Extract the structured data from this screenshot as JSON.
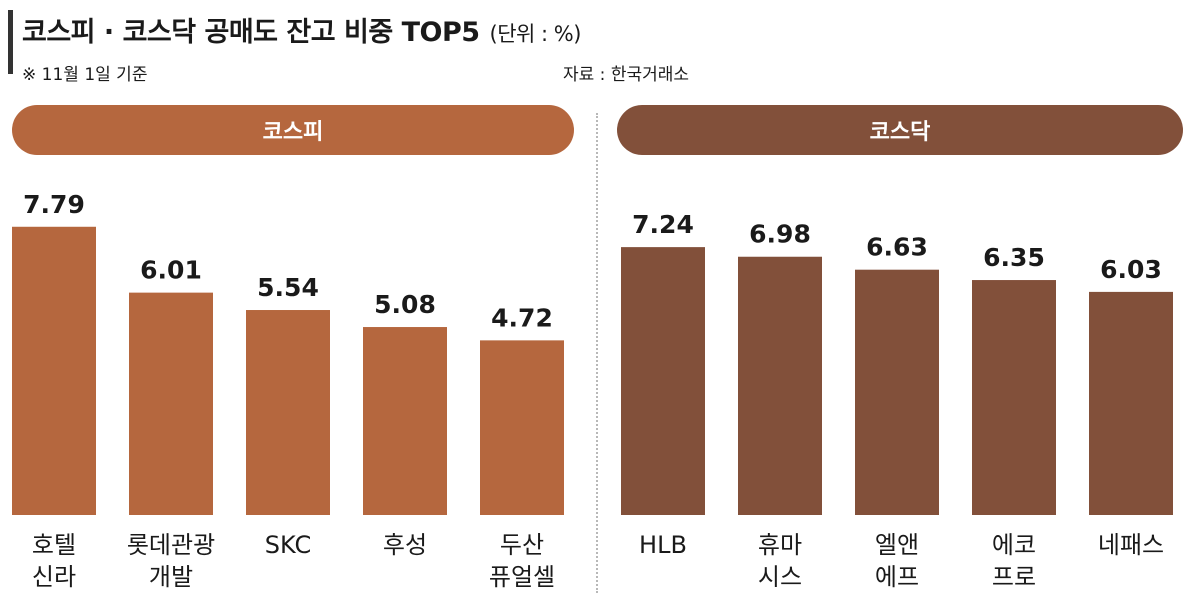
{
  "header": {
    "title": "코스피 · 코스닥 공매도 잔고 비중 TOP5",
    "unit": "(단위 : %)",
    "note": "※ 11월 1일 기준",
    "source": "자료 : 한국거래소"
  },
  "colors": {
    "kospi": "#B5673E",
    "kosdaq": "#82503A"
  },
  "chart_data": [
    {
      "type": "bar",
      "panel": "코스피",
      "categories": [
        [
          "호텔",
          "신라"
        ],
        [
          "롯데관광",
          "개발"
        ],
        [
          "SKC"
        ],
        [
          "후성"
        ],
        [
          "두산",
          "퓨얼셀"
        ]
      ],
      "values": [
        7.79,
        6.01,
        5.54,
        5.08,
        4.72
      ],
      "value_labels": [
        "7.79",
        "6.01",
        "5.54",
        "5.08",
        "4.72"
      ],
      "color": "#B5673E"
    },
    {
      "type": "bar",
      "panel": "코스닥",
      "categories": [
        [
          "HLB"
        ],
        [
          "휴마",
          "시스"
        ],
        [
          "엘앤",
          "에프"
        ],
        [
          "에코",
          "프로"
        ],
        [
          "네패스"
        ]
      ],
      "values": [
        7.24,
        6.98,
        6.63,
        6.35,
        6.03
      ],
      "value_labels": [
        "7.24",
        "6.98",
        "6.63",
        "6.35",
        "6.03"
      ],
      "color": "#82503A"
    }
  ]
}
